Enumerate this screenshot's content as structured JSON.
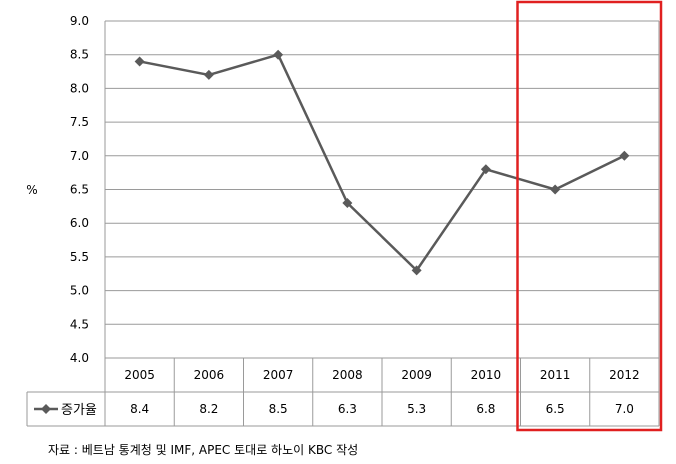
{
  "chart_data": {
    "type": "line",
    "title": "",
    "xlabel": "",
    "ylabel": "%",
    "categories": [
      "2005",
      "2006",
      "2007",
      "2008",
      "2009",
      "2010",
      "2011",
      "2012"
    ],
    "series": [
      {
        "name": "증가율",
        "values": [
          8.4,
          8.2,
          8.5,
          6.3,
          5.3,
          6.8,
          6.5,
          7.0
        ]
      }
    ],
    "table_values": [
      "8.4",
      "8.2",
      "8.5",
      "6.3",
      "5.3",
      "6.8",
      "6.5",
      "7.0"
    ],
    "y_ticks": [
      "4.0",
      "4.5",
      "5.0",
      "5.5",
      "6.0",
      "6.5",
      "7.0",
      "7.5",
      "8.0",
      "8.5",
      "9.0"
    ],
    "ylim": [
      4.0,
      9.0
    ],
    "grid": true,
    "legend": "data-table",
    "line_color": "#5a5a5a",
    "highlight": {
      "from": "2011",
      "to": "2012",
      "color": "#e02020"
    }
  },
  "source_note": "자료 : 베트남 통계청 및 IMF, APEC 토대로 하노이 KBC 작성"
}
